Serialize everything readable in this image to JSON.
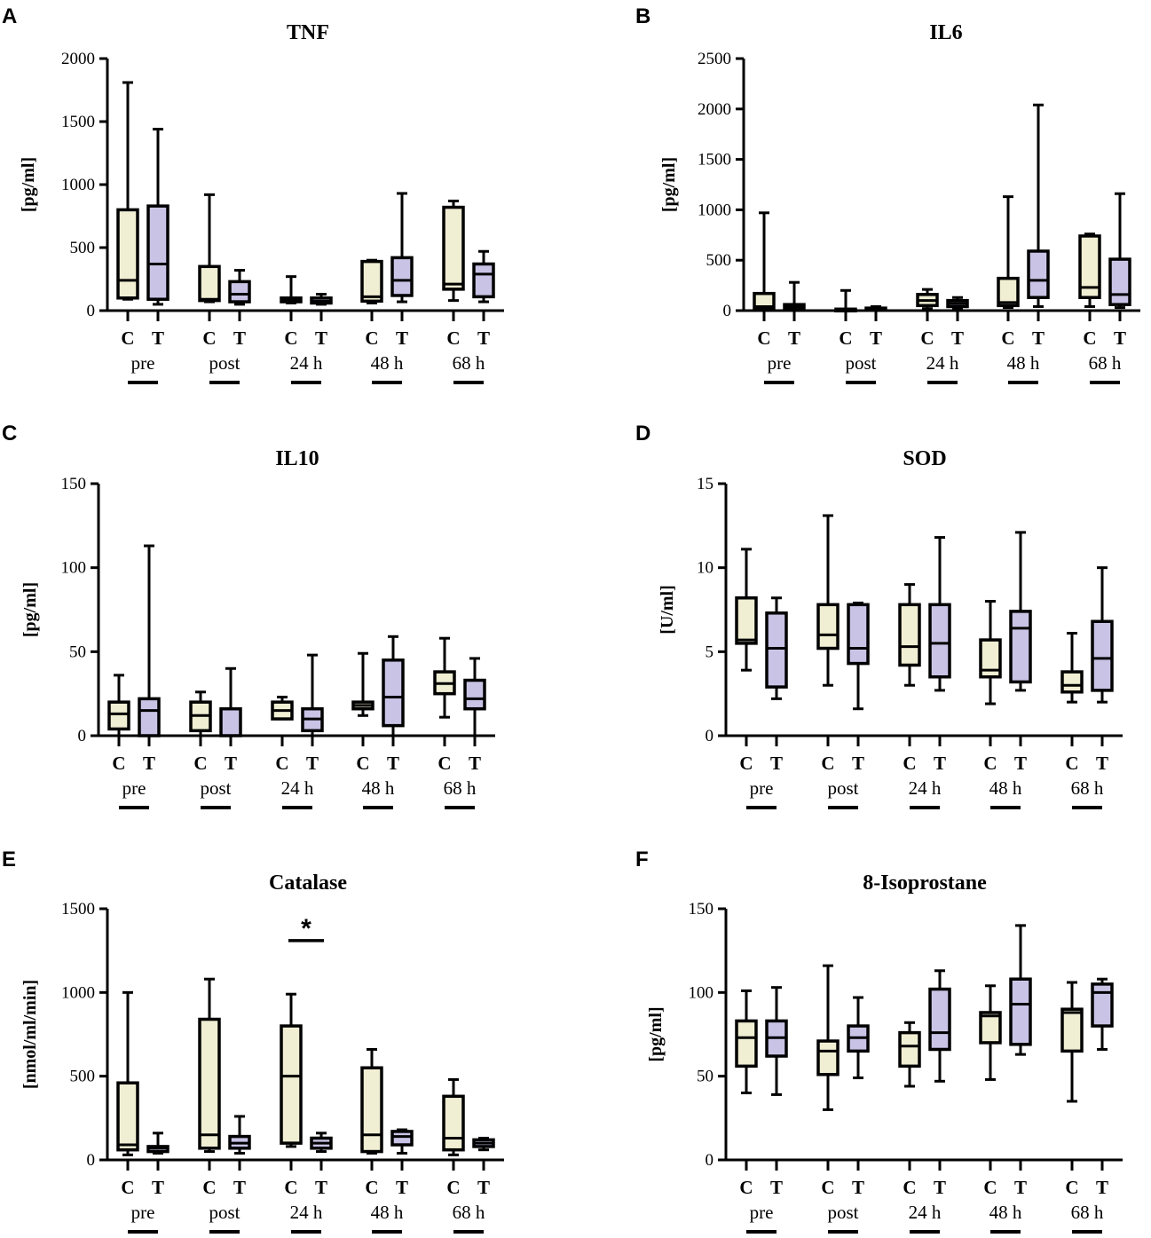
{
  "colors": {
    "control": "#f0eed3",
    "treatment": "#c9c4e6",
    "stroke": "#000000"
  },
  "chart_data": [
    {
      "type": "boxplot",
      "letter": "A",
      "title": "TNF",
      "ylabel": "[pg/ml]",
      "ylim": [
        0,
        2000
      ],
      "yticks": [
        0,
        500,
        1000,
        1500,
        2000
      ],
      "group_labels": [
        "C",
        "T"
      ],
      "timepoints": [
        "pre",
        "post",
        "24 h",
        "48 h",
        "68 h"
      ],
      "boxes": [
        {
          "group": "C",
          "timepoint": "pre",
          "min": 90,
          "q1": 100,
          "median": 240,
          "q3": 800,
          "max": 1810
        },
        {
          "group": "T",
          "timepoint": "pre",
          "min": 50,
          "q1": 90,
          "median": 370,
          "q3": 830,
          "max": 1440
        },
        {
          "group": "C",
          "timepoint": "post",
          "min": 70,
          "q1": 80,
          "median": 90,
          "q3": 350,
          "max": 920
        },
        {
          "group": "T",
          "timepoint": "post",
          "min": 50,
          "q1": 70,
          "median": 130,
          "q3": 230,
          "max": 320
        },
        {
          "group": "C",
          "timepoint": "24 h",
          "min": 60,
          "q1": 70,
          "median": 80,
          "q3": 100,
          "max": 270
        },
        {
          "group": "T",
          "timepoint": "24 h",
          "min": 50,
          "q1": 60,
          "median": 75,
          "q3": 100,
          "max": 130
        },
        {
          "group": "C",
          "timepoint": "48 h",
          "min": 60,
          "q1": 75,
          "median": 110,
          "q3": 390,
          "max": 400
        },
        {
          "group": "T",
          "timepoint": "48 h",
          "min": 70,
          "q1": 120,
          "median": 240,
          "q3": 420,
          "max": 930
        },
        {
          "group": "C",
          "timepoint": "68 h",
          "min": 80,
          "q1": 170,
          "median": 210,
          "q3": 820,
          "max": 870
        },
        {
          "group": "T",
          "timepoint": "68 h",
          "min": 70,
          "q1": 110,
          "median": 290,
          "q3": 370,
          "max": 470
        }
      ]
    },
    {
      "type": "boxplot",
      "letter": "B",
      "title": "IL6",
      "ylabel": "[pg/ml]",
      "ylim": [
        0,
        2500
      ],
      "yticks": [
        0,
        500,
        1000,
        1500,
        2000,
        2500
      ],
      "group_labels": [
        "C",
        "T"
      ],
      "timepoints": [
        "pre",
        "post",
        "24 h",
        "48 h",
        "68 h"
      ],
      "boxes": [
        {
          "group": "C",
          "timepoint": "pre",
          "min": 5,
          "q1": 15,
          "median": 40,
          "q3": 170,
          "max": 970
        },
        {
          "group": "T",
          "timepoint": "pre",
          "min": 5,
          "q1": 15,
          "median": 40,
          "q3": 60,
          "max": 280
        },
        {
          "group": "C",
          "timepoint": "post",
          "min": 3,
          "q1": 5,
          "median": 8,
          "q3": 15,
          "max": 200
        },
        {
          "group": "T",
          "timepoint": "post",
          "min": 3,
          "q1": 5,
          "median": 12,
          "q3": 25,
          "max": 40
        },
        {
          "group": "C",
          "timepoint": "24 h",
          "min": 20,
          "q1": 50,
          "median": 100,
          "q3": 160,
          "max": 210
        },
        {
          "group": "T",
          "timepoint": "24 h",
          "min": 20,
          "q1": 40,
          "median": 70,
          "q3": 100,
          "max": 130
        },
        {
          "group": "C",
          "timepoint": "48 h",
          "min": 30,
          "q1": 50,
          "median": 80,
          "q3": 320,
          "max": 1130
        },
        {
          "group": "T",
          "timepoint": "48 h",
          "min": 40,
          "q1": 130,
          "median": 300,
          "q3": 590,
          "max": 2040
        },
        {
          "group": "C",
          "timepoint": "68 h",
          "min": 40,
          "q1": 130,
          "median": 230,
          "q3": 740,
          "max": 760
        },
        {
          "group": "T",
          "timepoint": "68 h",
          "min": 30,
          "q1": 60,
          "median": 160,
          "q3": 510,
          "max": 1160
        }
      ]
    },
    {
      "type": "boxplot",
      "letter": "C",
      "title": "IL10",
      "ylabel": "[pg/ml]",
      "ylim": [
        0,
        150
      ],
      "yticks": [
        0,
        50,
        100,
        150
      ],
      "group_labels": [
        "C",
        "T"
      ],
      "timepoints": [
        "pre",
        "post",
        "24 h",
        "48 h",
        "68 h"
      ],
      "boxes": [
        {
          "group": "C",
          "timepoint": "pre",
          "min": 0,
          "q1": 4,
          "median": 13,
          "q3": 20,
          "max": 36
        },
        {
          "group": "T",
          "timepoint": "pre",
          "min": 0,
          "q1": 0,
          "median": 15,
          "q3": 22,
          "max": 113
        },
        {
          "group": "C",
          "timepoint": "post",
          "min": 0,
          "q1": 3,
          "median": 12,
          "q3": 20,
          "max": 26
        },
        {
          "group": "T",
          "timepoint": "post",
          "min": 0,
          "q1": 0,
          "median": 0,
          "q3": 16,
          "max": 40
        },
        {
          "group": "C",
          "timepoint": "24 h",
          "min": 10,
          "q1": 10,
          "median": 15,
          "q3": 20,
          "max": 23
        },
        {
          "group": "T",
          "timepoint": "24 h",
          "min": 0,
          "q1": 3,
          "median": 10,
          "q3": 16,
          "max": 48
        },
        {
          "group": "C",
          "timepoint": "48 h",
          "min": 12,
          "q1": 16,
          "median": 18,
          "q3": 20,
          "max": 49
        },
        {
          "group": "T",
          "timepoint": "48 h",
          "min": 0,
          "q1": 6,
          "median": 23,
          "q3": 45,
          "max": 59
        },
        {
          "group": "C",
          "timepoint": "68 h",
          "min": 11,
          "q1": 25,
          "median": 31,
          "q3": 38,
          "max": 58
        },
        {
          "group": "T",
          "timepoint": "68 h",
          "min": 0,
          "q1": 16,
          "median": 22,
          "q3": 33,
          "max": 46
        }
      ]
    },
    {
      "type": "boxplot",
      "letter": "D",
      "title": "SOD",
      "ylabel": "[U/ml]",
      "ylim": [
        0,
        15
      ],
      "yticks": [
        0,
        5,
        10,
        15
      ],
      "group_labels": [
        "C",
        "T"
      ],
      "timepoints": [
        "pre",
        "post",
        "24 h",
        "48 h",
        "68 h"
      ],
      "boxes": [
        {
          "group": "C",
          "timepoint": "pre",
          "min": 3.9,
          "q1": 5.5,
          "median": 5.7,
          "q3": 8.2,
          "max": 11.1
        },
        {
          "group": "T",
          "timepoint": "pre",
          "min": 2.2,
          "q1": 2.9,
          "median": 5.2,
          "q3": 7.3,
          "max": 8.2
        },
        {
          "group": "C",
          "timepoint": "post",
          "min": 3.0,
          "q1": 5.2,
          "median": 6.0,
          "q3": 7.8,
          "max": 13.1
        },
        {
          "group": "T",
          "timepoint": "post",
          "min": 1.6,
          "q1": 4.3,
          "median": 5.2,
          "q3": 7.8,
          "max": 7.9
        },
        {
          "group": "C",
          "timepoint": "24 h",
          "min": 3.0,
          "q1": 4.2,
          "median": 5.3,
          "q3": 7.8,
          "max": 9.0
        },
        {
          "group": "T",
          "timepoint": "24 h",
          "min": 2.7,
          "q1": 3.5,
          "median": 5.5,
          "q3": 7.8,
          "max": 11.8
        },
        {
          "group": "C",
          "timepoint": "48 h",
          "min": 1.9,
          "q1": 3.5,
          "median": 3.9,
          "q3": 5.7,
          "max": 8.0
        },
        {
          "group": "T",
          "timepoint": "48 h",
          "min": 2.7,
          "q1": 3.2,
          "median": 6.4,
          "q3": 7.4,
          "max": 12.1
        },
        {
          "group": "C",
          "timepoint": "68 h",
          "min": 2.0,
          "q1": 2.6,
          "median": 3.0,
          "q3": 3.8,
          "max": 6.1
        },
        {
          "group": "T",
          "timepoint": "68 h",
          "min": 2.0,
          "q1": 2.7,
          "median": 4.6,
          "q3": 6.8,
          "max": 10.0
        }
      ]
    },
    {
      "type": "boxplot",
      "letter": "E",
      "title": "Catalase",
      "ylabel": "[nmol/ml/min]",
      "ylim": [
        0,
        1500
      ],
      "yticks": [
        0,
        500,
        1000,
        1500
      ],
      "group_labels": [
        "C",
        "T"
      ],
      "timepoints": [
        "pre",
        "post",
        "24 h",
        "48 h",
        "68 h"
      ],
      "significance": {
        "timepoint": "24 h",
        "label": "*",
        "value": 1310
      },
      "boxes": [
        {
          "group": "C",
          "timepoint": "pre",
          "min": 30,
          "q1": 60,
          "median": 90,
          "q3": 460,
          "max": 1000
        },
        {
          "group": "T",
          "timepoint": "pre",
          "min": 40,
          "q1": 50,
          "median": 70,
          "q3": 80,
          "max": 160
        },
        {
          "group": "C",
          "timepoint": "post",
          "min": 50,
          "q1": 70,
          "median": 150,
          "q3": 840,
          "max": 1080
        },
        {
          "group": "T",
          "timepoint": "post",
          "min": 40,
          "q1": 70,
          "median": 100,
          "q3": 140,
          "max": 260
        },
        {
          "group": "C",
          "timepoint": "24 h",
          "min": 80,
          "q1": 100,
          "median": 500,
          "q3": 800,
          "max": 990
        },
        {
          "group": "T",
          "timepoint": "24 h",
          "min": 50,
          "q1": 70,
          "median": 100,
          "q3": 130,
          "max": 160
        },
        {
          "group": "C",
          "timepoint": "48 h",
          "min": 40,
          "q1": 50,
          "median": 150,
          "q3": 550,
          "max": 660
        },
        {
          "group": "T",
          "timepoint": "48 h",
          "min": 40,
          "q1": 90,
          "median": 140,
          "q3": 170,
          "max": 180
        },
        {
          "group": "C",
          "timepoint": "68 h",
          "min": 30,
          "q1": 60,
          "median": 130,
          "q3": 380,
          "max": 480
        },
        {
          "group": "T",
          "timepoint": "68 h",
          "min": 60,
          "q1": 80,
          "median": 100,
          "q3": 120,
          "max": 130
        }
      ]
    },
    {
      "type": "boxplot",
      "letter": "F",
      "title": "8-Isoprostane",
      "ylabel": "[pg/ml]",
      "ylim": [
        0,
        150
      ],
      "yticks": [
        0,
        50,
        100,
        150
      ],
      "group_labels": [
        "C",
        "T"
      ],
      "timepoints": [
        "pre",
        "post",
        "24 h",
        "48 h",
        "68 h"
      ],
      "boxes": [
        {
          "group": "C",
          "timepoint": "pre",
          "min": 40,
          "q1": 56,
          "median": 73,
          "q3": 83,
          "max": 101
        },
        {
          "group": "T",
          "timepoint": "pre",
          "min": 39,
          "q1": 62,
          "median": 73,
          "q3": 83,
          "max": 103
        },
        {
          "group": "C",
          "timepoint": "post",
          "min": 30,
          "q1": 51,
          "median": 65,
          "q3": 71,
          "max": 116
        },
        {
          "group": "T",
          "timepoint": "post",
          "min": 49,
          "q1": 65,
          "median": 73,
          "q3": 80,
          "max": 97
        },
        {
          "group": "C",
          "timepoint": "24 h",
          "min": 44,
          "q1": 56,
          "median": 68,
          "q3": 76,
          "max": 82
        },
        {
          "group": "T",
          "timepoint": "24 h",
          "min": 47,
          "q1": 66,
          "median": 76,
          "q3": 102,
          "max": 113
        },
        {
          "group": "C",
          "timepoint": "48 h",
          "min": 48,
          "q1": 70,
          "median": 86,
          "q3": 88,
          "max": 104
        },
        {
          "group": "T",
          "timepoint": "48 h",
          "min": 63,
          "q1": 69,
          "median": 93,
          "q3": 108,
          "max": 140
        },
        {
          "group": "C",
          "timepoint": "68 h",
          "min": 35,
          "q1": 65,
          "median": 88,
          "q3": 90,
          "max": 106
        },
        {
          "group": "T",
          "timepoint": "68 h",
          "min": 66,
          "q1": 80,
          "median": 100,
          "q3": 105,
          "max": 108
        }
      ]
    }
  ]
}
